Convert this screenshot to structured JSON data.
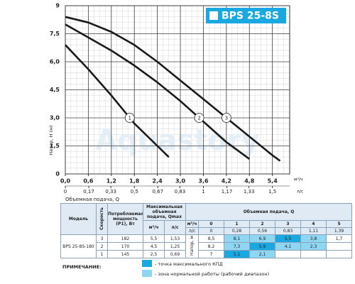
{
  "chart_data": {
    "type": "line",
    "title": "BPS 25-8S",
    "y_label": "Напор, H (м)",
    "x_label": "Объемная подача, Q",
    "x_unit": "м³/ч",
    "x2_unit": "л/с",
    "watermark": "Aquastory",
    "xlim": [
      0,
      5.85
    ],
    "ylim": [
      0,
      9
    ],
    "x2lim": [
      0,
      1.625
    ],
    "grid": true,
    "xticks": [
      {
        "value": 0,
        "label": "0,0"
      },
      {
        "value": 0.6,
        "label": "0,6"
      },
      {
        "value": 1.2,
        "label": "1,2"
      },
      {
        "value": 1.8,
        "label": "1,8"
      },
      {
        "value": 2.4,
        "label": "2,4"
      },
      {
        "value": 3.0,
        "label": "3,0"
      },
      {
        "value": 3.6,
        "label": "3,6"
      },
      {
        "value": 4.2,
        "label": "4,2"
      },
      {
        "value": 4.8,
        "label": "4,8"
      },
      {
        "value": 5.4,
        "label": "5,4"
      }
    ],
    "yticks": [
      0,
      {
        "value": 1.5,
        "label": "1,5"
      },
      {
        "value": 3.0,
        "label": "3,0"
      },
      {
        "value": 4.5,
        "label": "4,5"
      },
      {
        "value": 6.0,
        "label": "6,0"
      },
      {
        "value": 7.5,
        "label": "7,5"
      },
      9
    ],
    "x2ticks": [
      0,
      {
        "value": 0.17,
        "label": "0,17"
      },
      {
        "value": 0.33,
        "label": "0,33"
      },
      {
        "value": 0.5,
        "label": "0,5"
      },
      {
        "value": 0.67,
        "label": "0,67"
      },
      {
        "value": 0.83,
        "label": "0,83"
      },
      1,
      {
        "value": 1.17,
        "label": "1,17"
      },
      {
        "value": 1.33,
        "label": "1,33"
      },
      {
        "value": 1.5,
        "label": "1,5"
      }
    ],
    "title_color": "#1ba8e0",
    "series": [
      {
        "name": "1",
        "color": "#1a1a1a",
        "x": [
          0,
          0.6,
          1.2,
          1.8,
          2.4,
          2.7
        ],
        "values": [
          6.9,
          5.6,
          4.2,
          2.7,
          1.5,
          0.9
        ]
      },
      {
        "name": "2",
        "color": "#1a1a1a",
        "x": [
          0,
          0.6,
          1.2,
          1.8,
          2.4,
          3.0,
          3.6,
          4.2,
          4.8
        ],
        "values": [
          8.0,
          7.3,
          6.6,
          5.8,
          4.9,
          3.9,
          2.8,
          1.7,
          0.8
        ]
      },
      {
        "name": "3",
        "color": "#1a1a1a",
        "x": [
          0,
          0.6,
          1.2,
          1.8,
          2.4,
          3.0,
          3.6,
          4.2,
          4.8,
          5.4,
          5.6
        ],
        "values": [
          8.4,
          8.1,
          7.6,
          6.9,
          6.0,
          5.0,
          4.0,
          3.0,
          2.0,
          1.0,
          0.7
        ]
      }
    ]
  },
  "table": {
    "model_header": "Модель",
    "speed_header": "Скорость",
    "power_header": "Потребляемая мощность (P1), Вт",
    "qmax_header": "Максимальная объемная подача, Qmax",
    "qmax_units": [
      "м³/ч",
      "л/с"
    ],
    "flow_header": "Объемная подача, Q",
    "flow_units": [
      "м³/ч",
      "л/с"
    ],
    "flow_m3h": [
      "0",
      "1",
      "2",
      "3",
      "4",
      "5"
    ],
    "flow_ls": [
      "0",
      "0,28",
      "0,56",
      "0,83",
      "1,11",
      "1,39"
    ],
    "head_header": "Напор, м",
    "model": "BPS 25-8S-180",
    "rows": [
      {
        "speed": "3",
        "power": "182",
        "qmax_m3h": "5,5",
        "qmax_ls": "1,53",
        "head": [
          "8,5",
          "8,1",
          "6,9",
          "5,5",
          "3,8",
          "1,7"
        ]
      },
      {
        "speed": "2",
        "power": "170",
        "qmax_m3h": "4,5",
        "qmax_ls": "1,25",
        "head": [
          "8,2",
          "7,3",
          "5,9",
          "4,1",
          "2,3"
        ]
      },
      {
        "speed": "1",
        "power": "145",
        "qmax_m3h": "2,5",
        "qmax_ls": "0,69",
        "head": [
          "7",
          "5,1",
          "2,1"
        ]
      }
    ]
  },
  "note": {
    "label": "ПРИМЕЧАНИЕ:",
    "max_efficiency": "- точка максимального КПД",
    "normal_zone": "- зона нормальной работы (рабочий диапазон)",
    "max_color": "#1ba8e0",
    "normal_color": "#8fd6f2"
  }
}
